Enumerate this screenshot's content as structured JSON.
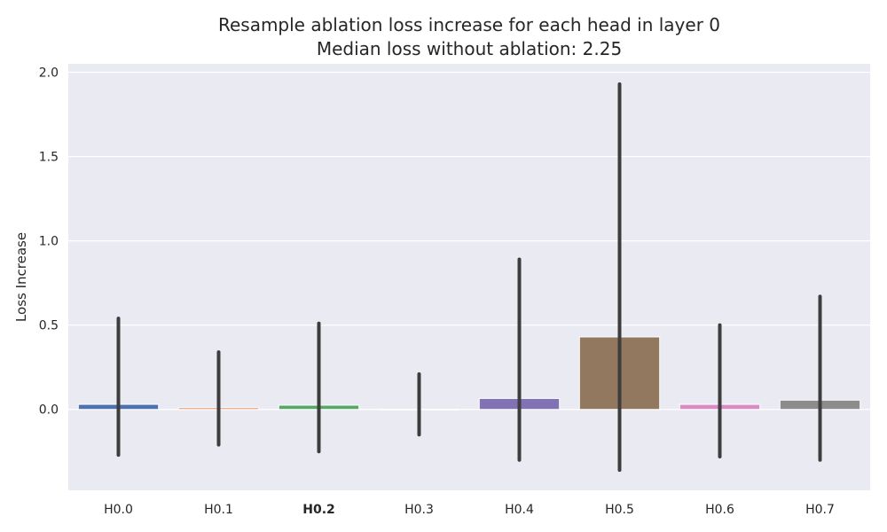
{
  "chart_data": {
    "type": "bar",
    "title_line1": "Resample ablation loss increase for each head in layer 0",
    "title_line2": "Median loss without ablation: 2.25",
    "xlabel": "",
    "ylabel": "Loss Increase",
    "ylim": [
      -0.48,
      2.05
    ],
    "yticks": [
      0.0,
      0.5,
      1.0,
      1.5,
      2.0
    ],
    "ytick_labels": [
      "0.0",
      "0.5",
      "1.0",
      "1.5",
      "2.0"
    ],
    "grid": true,
    "categories": [
      "H0.0",
      "H0.1",
      "H0.2",
      "H0.3",
      "H0.4",
      "H0.5",
      "H0.6",
      "H0.7"
    ],
    "bold_category": "H0.2",
    "values": [
      0.03,
      0.01,
      0.025,
      0.0,
      0.065,
      0.43,
      0.03,
      0.055
    ],
    "error_low": [
      -0.27,
      -0.21,
      -0.25,
      -0.15,
      -0.3,
      -0.36,
      -0.28,
      -0.3
    ],
    "error_high": [
      0.54,
      0.34,
      0.51,
      0.21,
      0.89,
      1.93,
      0.5,
      0.67
    ],
    "colors": [
      "#4c72b0",
      "#dd8452",
      "#55a868",
      "#c44e52",
      "#8172b3",
      "#937860",
      "#da8bc3",
      "#8c8c8c"
    ],
    "background_color": "#eaeaf2",
    "error_color": "#3d3d3d"
  }
}
